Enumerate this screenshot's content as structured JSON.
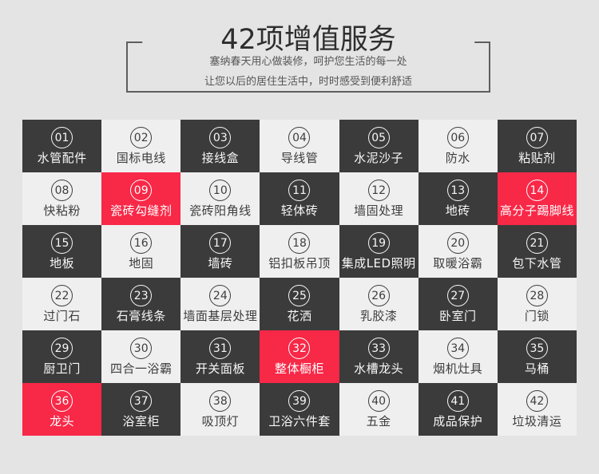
{
  "header": {
    "title": "42项增值服务",
    "subtitle_line1": "塞纳春天用心做装修，呵护您生活的每一处",
    "subtitle_line2": "让您以后的居住生活中，时时感受到便利舒适"
  },
  "colors": {
    "page_bg": "#e4e4e4",
    "dark_cell": "#3b3b3b",
    "light_cell": "#efefef",
    "red_cell": "#f82847",
    "header_border": "#5e5e5e",
    "title_text": "#2e2e2e",
    "subtitle_text": "#565656"
  },
  "grid": {
    "columns": 7,
    "rows": 6,
    "items": [
      {
        "num": "01",
        "label": "水管配件",
        "variant": "dark"
      },
      {
        "num": "02",
        "label": "国标电线",
        "variant": "light"
      },
      {
        "num": "03",
        "label": "接线盒",
        "variant": "dark"
      },
      {
        "num": "04",
        "label": "导线管",
        "variant": "light"
      },
      {
        "num": "05",
        "label": "水泥沙子",
        "variant": "dark"
      },
      {
        "num": "06",
        "label": "防水",
        "variant": "light"
      },
      {
        "num": "07",
        "label": "粘贴剂",
        "variant": "dark"
      },
      {
        "num": "08",
        "label": "快粘粉",
        "variant": "light"
      },
      {
        "num": "09",
        "label": "瓷砖勾缝剂",
        "variant": "red"
      },
      {
        "num": "10",
        "label": "瓷砖阳角线",
        "variant": "light"
      },
      {
        "num": "11",
        "label": "轻体砖",
        "variant": "dark"
      },
      {
        "num": "12",
        "label": "墙固处理",
        "variant": "light"
      },
      {
        "num": "13",
        "label": "地砖",
        "variant": "dark"
      },
      {
        "num": "14",
        "label": "高分子踢脚线",
        "variant": "red"
      },
      {
        "num": "15",
        "label": "地板",
        "variant": "dark"
      },
      {
        "num": "16",
        "label": "地固",
        "variant": "light"
      },
      {
        "num": "17",
        "label": "墙砖",
        "variant": "dark"
      },
      {
        "num": "18",
        "label": "铝扣板吊顶",
        "variant": "light"
      },
      {
        "num": "19",
        "label": "集成LED照明",
        "variant": "dark"
      },
      {
        "num": "20",
        "label": "取暖浴霸",
        "variant": "light"
      },
      {
        "num": "21",
        "label": "包下水管",
        "variant": "dark"
      },
      {
        "num": "22",
        "label": "过门石",
        "variant": "light"
      },
      {
        "num": "23",
        "label": "石膏线条",
        "variant": "dark"
      },
      {
        "num": "24",
        "label": "墙面基层处理",
        "variant": "light"
      },
      {
        "num": "25",
        "label": "花洒",
        "variant": "dark"
      },
      {
        "num": "26",
        "label": "乳胶漆",
        "variant": "light"
      },
      {
        "num": "27",
        "label": "卧室门",
        "variant": "dark"
      },
      {
        "num": "28",
        "label": "门锁",
        "variant": "light"
      },
      {
        "num": "29",
        "label": "厨卫门",
        "variant": "dark"
      },
      {
        "num": "30",
        "label": "四合一浴霸",
        "variant": "light"
      },
      {
        "num": "31",
        "label": "开关面板",
        "variant": "dark"
      },
      {
        "num": "32",
        "label": "整体橱柜",
        "variant": "red"
      },
      {
        "num": "33",
        "label": "水槽龙头",
        "variant": "dark"
      },
      {
        "num": "34",
        "label": "烟机灶具",
        "variant": "light"
      },
      {
        "num": "35",
        "label": "马桶",
        "variant": "dark"
      },
      {
        "num": "36",
        "label": "龙头",
        "variant": "red"
      },
      {
        "num": "37",
        "label": "浴室柜",
        "variant": "dark"
      },
      {
        "num": "38",
        "label": "吸顶灯",
        "variant": "light"
      },
      {
        "num": "39",
        "label": "卫浴六件套",
        "variant": "dark"
      },
      {
        "num": "40",
        "label": "五金",
        "variant": "light"
      },
      {
        "num": "41",
        "label": "成品保护",
        "variant": "dark"
      },
      {
        "num": "42",
        "label": "垃圾清运",
        "variant": "light"
      }
    ]
  }
}
